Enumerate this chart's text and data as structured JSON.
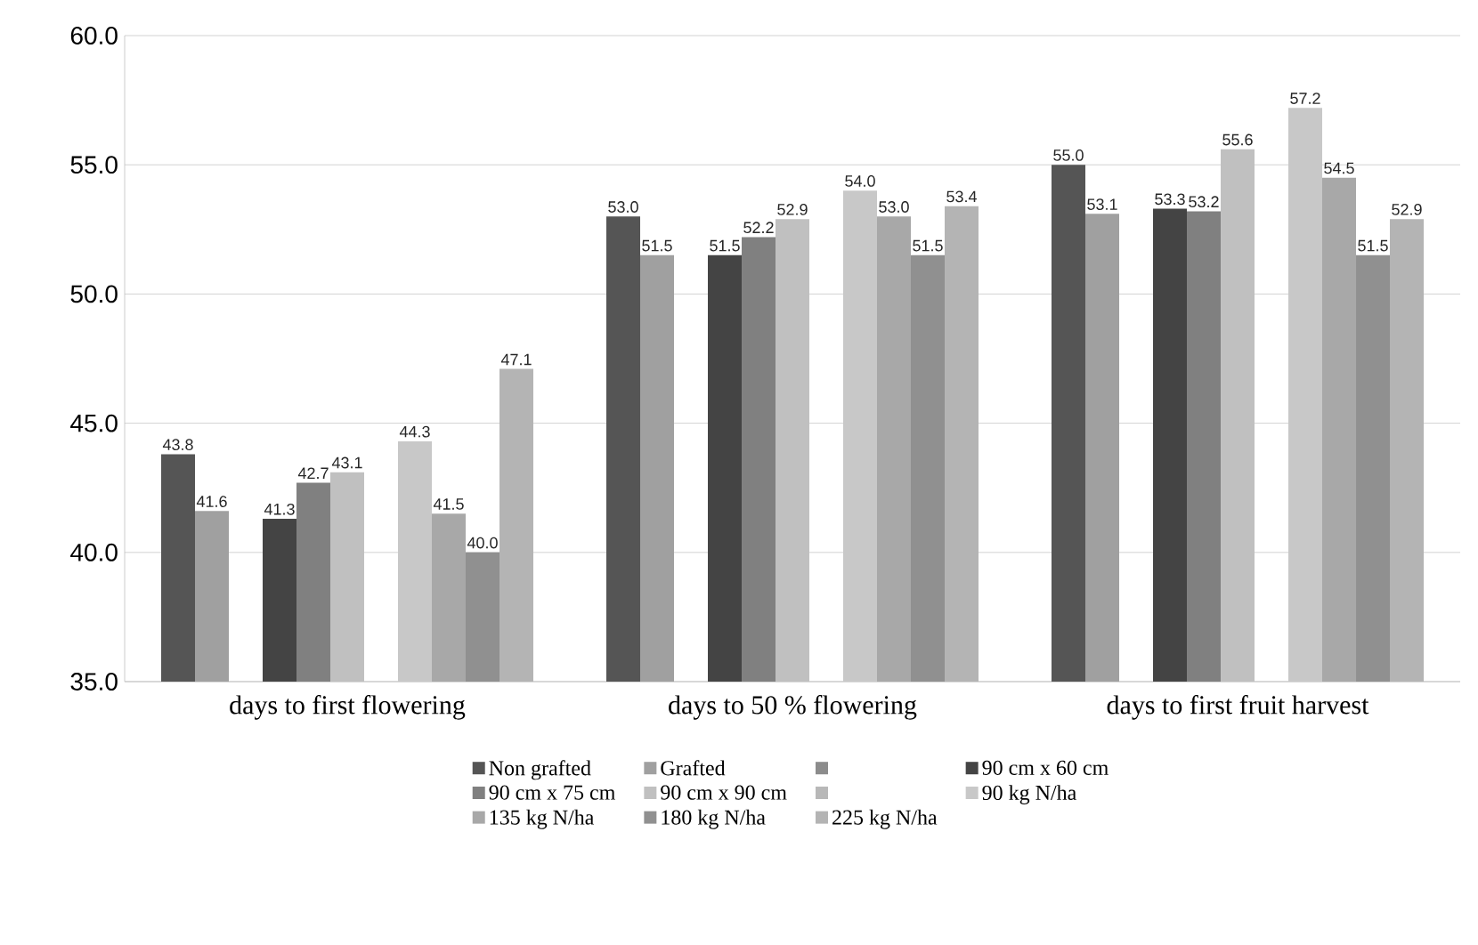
{
  "chart_data": {
    "type": "bar",
    "categories": [
      "days to first flowering",
      "days to 50 % flowering",
      "days to first fruit harvest"
    ],
    "series": [
      {
        "name": "Non grafted",
        "color": "#555555",
        "values": [
          43.8,
          53.0,
          55.0
        ],
        "value_labels": [
          "43.8",
          "53.0",
          "55.0"
        ]
      },
      {
        "name": "Grafted",
        "color": "#a0a0a0",
        "values": [
          41.6,
          51.5,
          53.1
        ],
        "value_labels": [
          "41.6",
          "51.5",
          "53.1"
        ]
      },
      {
        "color": "#8c8c8c",
        "values": [
          null,
          null,
          null
        ]
      },
      {
        "name": "90 cm x 60 cm",
        "color": "#444444",
        "values": [
          41.3,
          51.5,
          53.3
        ],
        "value_labels": [
          "41.3",
          "51.5",
          "53.3"
        ]
      },
      {
        "name": "90 cm x 75 cm",
        "color": "#808080",
        "values": [
          42.7,
          52.2,
          53.2
        ],
        "value_labels": [
          "42.7",
          "52.2",
          "53.2"
        ]
      },
      {
        "name": "90 cm x 90 cm",
        "color": "#c0c0c0",
        "values": [
          43.1,
          52.9,
          55.6
        ],
        "value_labels": [
          "43.1",
          "52.9",
          "55.6"
        ]
      },
      {
        "color": "#b8b8b8",
        "values": [
          null,
          null,
          null
        ]
      },
      {
        "name": "90 kg N/ha",
        "color": "#c8c8c8",
        "values": [
          44.3,
          54.0,
          57.2
        ],
        "value_labels": [
          "44.3",
          "54.0",
          "57.2"
        ]
      },
      {
        "name": "135 kg N/ha",
        "color": "#a8a8a8",
        "values": [
          41.5,
          53.0,
          54.5
        ],
        "value_labels": [
          "41.5",
          "53.0",
          "54.5"
        ]
      },
      {
        "name": "180 kg N/ha",
        "color": "#909090",
        "values": [
          40.0,
          51.5,
          51.5
        ],
        "value_labels": [
          "40.0",
          "51.5",
          "51.5"
        ]
      },
      {
        "name": "225 kg N/ha",
        "color": "#b4b4b4",
        "values": [
          47.1,
          53.4,
          52.9
        ],
        "value_labels": [
          "47.1",
          "53.4",
          "52.9"
        ]
      }
    ],
    "ylim": [
      35,
      60
    ],
    "yticks": [
      {
        "value": 35,
        "label": "35.0"
      },
      {
        "value": 40,
        "label": "40.0"
      },
      {
        "value": 45,
        "label": "45.0"
      },
      {
        "value": 50,
        "label": "50.0"
      },
      {
        "value": 55,
        "label": "55.0"
      },
      {
        "value": 60,
        "label": "60.0"
      }
    ],
    "grid": "y",
    "legend": "bottom"
  }
}
